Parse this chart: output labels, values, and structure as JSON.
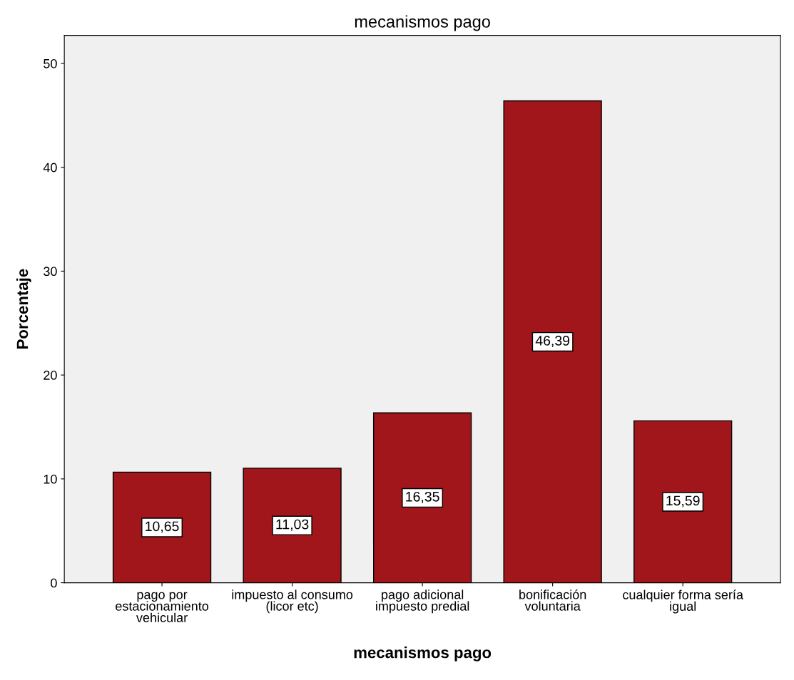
{
  "chart_data": {
    "type": "bar",
    "title": "mecanismos pago",
    "xlabel": "mecanismos pago",
    "ylabel": "Porcentaje",
    "categories": [
      "pago por\nestacionamiento\nvehicular",
      "impuesto al consumo\n(licor etc)",
      "pago adicional\nimpuesto predial",
      "bonificación\nvoluntaria",
      "cualquier forma sería\nigual"
    ],
    "values": [
      10.65,
      11.03,
      16.35,
      46.39,
      15.59
    ],
    "value_labels": [
      "10,65",
      "11,03",
      "16,35",
      "46,39",
      "15,59"
    ],
    "color": "#a0161a",
    "ylim": [
      0,
      52.7
    ],
    "yticks": [
      0,
      10,
      20,
      30,
      40,
      50
    ],
    "grid": false,
    "legend": false
  }
}
